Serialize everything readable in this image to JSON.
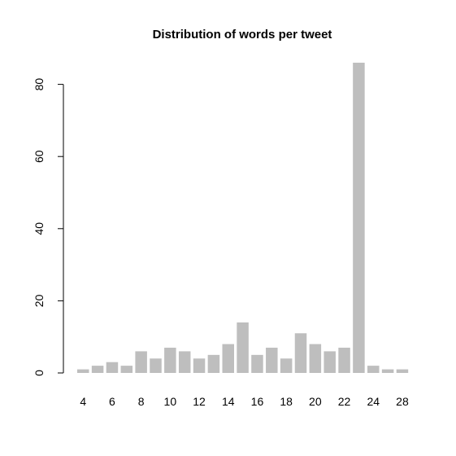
{
  "chart_data": {
    "type": "bar",
    "title": "Distribution of words per tweet",
    "xlabel": "",
    "ylabel": "",
    "categories": [
      4,
      5,
      6,
      7,
      8,
      9,
      10,
      11,
      12,
      13,
      14,
      15,
      16,
      17,
      18,
      19,
      20,
      21,
      22,
      23,
      24,
      27,
      28
    ],
    "values": [
      1,
      2,
      3,
      2,
      6,
      4,
      7,
      6,
      4,
      5,
      8,
      14,
      5,
      7,
      4,
      11,
      8,
      6,
      7,
      86,
      2,
      1,
      1
    ],
    "x_tick_labels": [
      "4",
      "6",
      "8",
      "10",
      "12",
      "14",
      "16",
      "18",
      "20",
      "22",
      "24",
      "28"
    ],
    "y_ticks": [
      0,
      20,
      40,
      60,
      80
    ],
    "ylim": [
      0,
      86
    ],
    "bar_color": "#bebebe",
    "grid": false,
    "legend": "none"
  }
}
